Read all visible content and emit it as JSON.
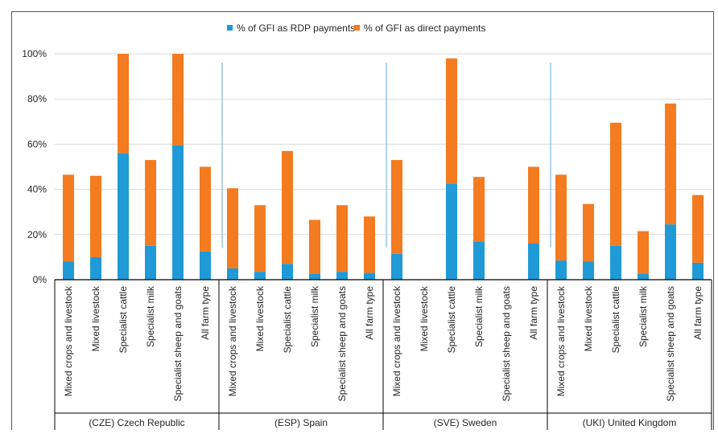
{
  "chart_data": {
    "type": "bar",
    "stacked": true,
    "legend_position": "top",
    "grid": true,
    "ylim": [
      0,
      100
    ],
    "yticks": [
      "0%",
      "20%",
      "40%",
      "60%",
      "80%",
      "100%"
    ],
    "groups": [
      {
        "label": "(CZE) Czech Republic",
        "categories": [
          "Mixed crops and livestock",
          "Mixed livestock",
          "Specialist cattle",
          "Specialist milk",
          "Specialist sheep and goats",
          "All farm type"
        ]
      },
      {
        "label": "(ESP) Spain",
        "categories": [
          "Mixed crops and livestock",
          "Mixed livestock",
          "Specialist cattle",
          "Specialist milk",
          "Specialist sheep and goats",
          "All farm type"
        ]
      },
      {
        "label": "(SVE) Sweden",
        "categories": [
          "Mixed crops and livestock",
          "Mixed livestock",
          "Specialist cattle",
          "Specialist milk",
          "Specialist sheep and goats",
          "All farm type"
        ]
      },
      {
        "label": "(UKI) United Kingdom",
        "categories": [
          "Mixed crops and livestock",
          "Mixed livestock",
          "Specialist cattle",
          "Specialist milk",
          "Specialist sheep and goats",
          "All farm type"
        ]
      }
    ],
    "series": [
      {
        "name": "% of GFI as RDP payments",
        "color": "#1f9ad6",
        "values": [
          8,
          10,
          56,
          15,
          59.5,
          12.5,
          5,
          3.5,
          7,
          2.5,
          3.5,
          3,
          11.5,
          0,
          42.5,
          17,
          0,
          16,
          8.5,
          8,
          15,
          2.5,
          24.5,
          7.5
        ]
      },
      {
        "name": "% of GFI as direct payments",
        "color": "#f47b20",
        "values": [
          38.5,
          36,
          44,
          38,
          40.5,
          37.5,
          35.5,
          29.5,
          50,
          24,
          29.5,
          25,
          41.5,
          0,
          55.5,
          28.5,
          0,
          34,
          38,
          25.5,
          54.5,
          19,
          53.5,
          30
        ]
      }
    ]
  }
}
